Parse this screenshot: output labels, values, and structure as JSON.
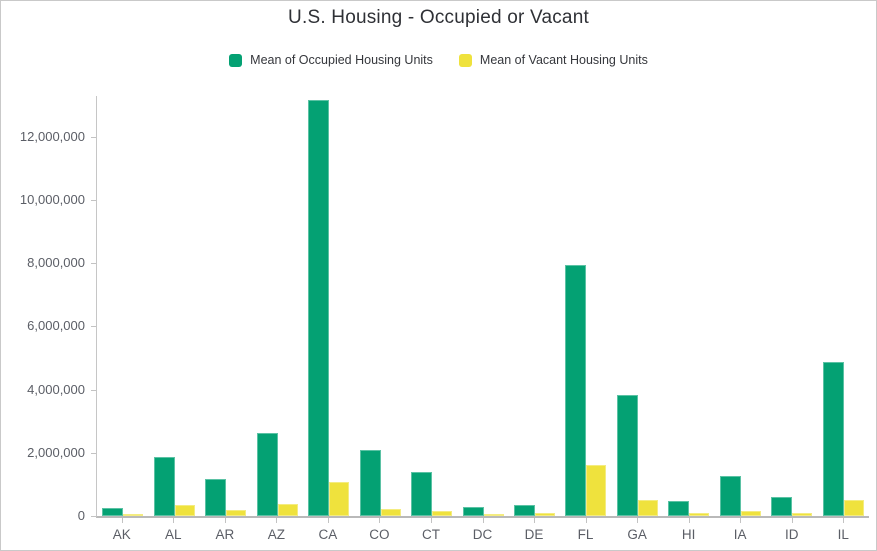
{
  "header": {
    "title": "U.S. Housing - Occupied or Vacant"
  },
  "legend": {
    "items": [
      {
        "label": "Mean of Occupied Housing Units",
        "color": "#04a173"
      },
      {
        "label": "Mean of Vacant Housing Units",
        "color": "#efe23d"
      }
    ]
  },
  "chart_data": {
    "type": "bar",
    "title": "U.S. Housing - Occupied or Vacant",
    "categories": [
      "AK",
      "AL",
      "AR",
      "AZ",
      "CA",
      "CO",
      "CT",
      "DC",
      "DE",
      "FL",
      "GA",
      "HI",
      "IA",
      "ID",
      "IL"
    ],
    "series": [
      {
        "name": "Mean of Occupied Housing Units",
        "color": "#04a173",
        "values": [
          240000,
          1870000,
          1160000,
          2630000,
          13150000,
          2100000,
          1390000,
          280000,
          350000,
          7930000,
          3840000,
          470000,
          1270000,
          600000,
          4870000
        ]
      },
      {
        "name": "Mean of Vacant Housing Units",
        "color": "#efe23d",
        "values": [
          55000,
          350000,
          180000,
          380000,
          1080000,
          230000,
          160000,
          40000,
          85000,
          1610000,
          500000,
          100000,
          160000,
          90000,
          500000
        ]
      }
    ],
    "xlabel": "",
    "ylabel": "",
    "ylim": [
      0,
      13290000
    ],
    "yticks": [
      0,
      2000000,
      4000000,
      6000000,
      8000000,
      10000000,
      12000000
    ],
    "ytick_labels": [
      "0",
      "2,000,000",
      "4,000,000",
      "6,000,000",
      "8,000,000",
      "10,000,000",
      "12,000,000"
    ],
    "grid": false,
    "legend_position": "top"
  }
}
